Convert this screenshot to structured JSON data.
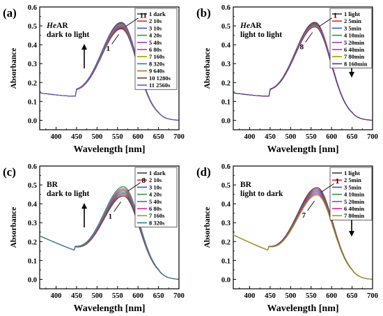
{
  "chart_data": [
    {
      "type": "line",
      "panel_label": "(a)",
      "note_lines": [
        {
          "italic": "He",
          "rest": "AR"
        },
        {
          "italic": "",
          "rest": "dark to light"
        }
      ],
      "xlabel": "Wavelength [nm]",
      "ylabel": "Absorbance",
      "xlim": [
        360,
        700
      ],
      "ylim": [
        -0.05,
        0.6
      ],
      "xticks": [
        "400",
        "450",
        "500",
        "550",
        "600",
        "650",
        "700"
      ],
      "yticks": [
        "0.0",
        "0.1",
        "0.2",
        "0.3",
        "0.4",
        "0.5",
        "0.6"
      ],
      "legend_position": "top-right",
      "arrow": "up",
      "annotation_top": "11",
      "annotation_bottom": "1",
      "curve_model": {
        "baseline_start": 0.145,
        "dip_at": 450,
        "dip_value": 0.12,
        "peak_x": 560,
        "peak_range": [
          0.47,
          0.505
        ],
        "end_value": 0.0
      },
      "series": [
        {
          "name": "1 dark",
          "color": "#3b3b3b"
        },
        {
          "name": "2 10s",
          "color": "#e8212b"
        },
        {
          "name": "3 10s",
          "color": "#3a54d8"
        },
        {
          "name": "4 20s",
          "color": "#2e9a3a"
        },
        {
          "name": "5 40s",
          "color": "#9a3fbf"
        },
        {
          "name": "6 80s",
          "color": "#d62f8a"
        },
        {
          "name": "7 160s",
          "color": "#a0a000"
        },
        {
          "name": "8 320s",
          "color": "#1d7fa6"
        },
        {
          "name": "9 640s",
          "color": "#c26a20"
        },
        {
          "name": "10 1280s",
          "color": "#7a3b12"
        },
        {
          "name": "11 2560s",
          "color": "#5a5ae0"
        }
      ]
    },
    {
      "type": "line",
      "panel_label": "(b)",
      "note_lines": [
        {
          "italic": "He",
          "rest": "AR"
        },
        {
          "italic": "",
          "rest": "light to light"
        }
      ],
      "xlabel": "Wavelength [nm]",
      "ylabel": "Absorbance",
      "xlim": [
        360,
        700
      ],
      "ylim": [
        -0.05,
        0.6
      ],
      "xticks": [
        "400",
        "450",
        "500",
        "550",
        "600",
        "650",
        "700"
      ],
      "yticks": [
        "0.0",
        "0.1",
        "0.2",
        "0.3",
        "0.4",
        "0.5",
        "0.6"
      ],
      "legend_position": "top-right",
      "arrow": "down",
      "annotation_top": "1",
      "annotation_bottom": "8",
      "curve_model": {
        "baseline_start": 0.145,
        "dip_at": 450,
        "dip_value": 0.12,
        "peak_x": 560,
        "peak_range": [
          0.48,
          0.505
        ],
        "end_value": 0.0
      },
      "series": [
        {
          "name": "1 light",
          "color": "#3b3b3b"
        },
        {
          "name": "2 5min",
          "color": "#e8212b"
        },
        {
          "name": "3 5min",
          "color": "#3a54d8"
        },
        {
          "name": "4 10min",
          "color": "#2e9a3a"
        },
        {
          "name": "5 20min",
          "color": "#9a3fbf"
        },
        {
          "name": "6 40min",
          "color": "#d62f8a"
        },
        {
          "name": "7 80min",
          "color": "#a0a000"
        },
        {
          "name": "8 160min",
          "color": "#5b2d9e"
        }
      ]
    },
    {
      "type": "line",
      "panel_label": "(c)",
      "note_lines": [
        {
          "italic": "",
          "rest": "BR"
        },
        {
          "italic": "",
          "rest": "dark to light"
        }
      ],
      "xlabel": "Wavelength [nm]",
      "ylabel": "Absorbance",
      "xlim": [
        360,
        700
      ],
      "ylim": [
        -0.05,
        0.6
      ],
      "xticks": [
        "400",
        "450",
        "500",
        "550",
        "600",
        "650",
        "700"
      ],
      "yticks": [
        "0.0",
        "0.1",
        "0.2",
        "0.3",
        "0.4",
        "0.5",
        "0.6"
      ],
      "legend_position": "top-right",
      "arrow": "up",
      "annotation_top": "8",
      "annotation_bottom": "1",
      "curve_model": {
        "baseline_start": 0.23,
        "dip_at": 445,
        "dip_value": 0.15,
        "peak_x": 565,
        "peak_range": [
          0.425,
          0.475
        ],
        "end_value": 0.0
      },
      "series": [
        {
          "name": "1 dark",
          "color": "#3b3b3b"
        },
        {
          "name": "2 10s",
          "color": "#e8212b"
        },
        {
          "name": "3 10s",
          "color": "#3a54d8"
        },
        {
          "name": "4 20s",
          "color": "#2e9a3a"
        },
        {
          "name": "5 40s",
          "color": "#9a3fbf"
        },
        {
          "name": "6 80s",
          "color": "#d62f8a"
        },
        {
          "name": "7 160s",
          "color": "#a0a000"
        },
        {
          "name": "8 320s",
          "color": "#1d7fa6"
        }
      ]
    },
    {
      "type": "line",
      "panel_label": "(d)",
      "note_lines": [
        {
          "italic": "",
          "rest": "BR"
        },
        {
          "italic": "",
          "rest": "light to dark"
        }
      ],
      "xlabel": "Wavelength [nm]",
      "ylabel": "Absorbance",
      "xlim": [
        360,
        700
      ],
      "ylim": [
        -0.05,
        0.6
      ],
      "xticks": [
        "400",
        "450",
        "500",
        "550",
        "600",
        "650",
        "700"
      ],
      "yticks": [
        "0.0",
        "0.1",
        "0.2",
        "0.3",
        "0.4",
        "0.5",
        "0.6"
      ],
      "legend_position": "top-right",
      "arrow": "down",
      "annotation_top": "1",
      "annotation_bottom": "7",
      "curve_model": {
        "baseline_start": 0.235,
        "dip_at": 445,
        "dip_value": 0.15,
        "peak_x": 565,
        "peak_range": [
          0.43,
          0.47
        ],
        "end_value": 0.0
      },
      "series": [
        {
          "name": "1 light",
          "color": "#3b3b3b"
        },
        {
          "name": "2 5min",
          "color": "#e8212b"
        },
        {
          "name": "3 5min",
          "color": "#3a54d8"
        },
        {
          "name": "4 10min",
          "color": "#2e9a3a"
        },
        {
          "name": "5 20min",
          "color": "#9a3fbf"
        },
        {
          "name": "6 40min",
          "color": "#d62f8a"
        },
        {
          "name": "7 80min",
          "color": "#a0a000"
        }
      ]
    }
  ]
}
